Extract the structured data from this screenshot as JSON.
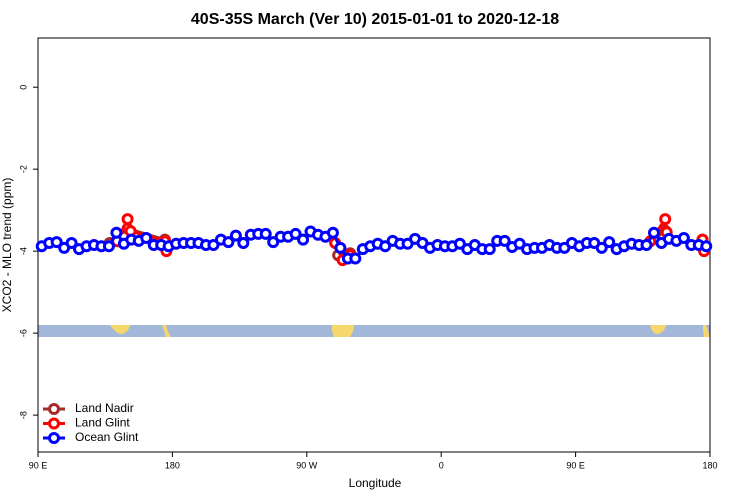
{
  "chart_data": {
    "type": "line",
    "title": "40S-35S March (Ver 10)   2015-01-01 to 2020-12-18",
    "x_label": "Longitude",
    "y_label": "XCO2 - MLO trend (ppm)",
    "xlim": [
      90,
      540
    ],
    "ylim": [
      -8.9,
      1.2
    ],
    "xticks": [
      {
        "value": 90,
        "label": "90 E"
      },
      180,
      {
        "value": 270,
        "label": "90 W"
      },
      {
        "value": 360,
        "label": "0"
      },
      {
        "value": 450,
        "label": "90 E"
      },
      {
        "value": 540,
        "label": "180"
      }
    ],
    "yticks": [
      0,
      -2,
      -4,
      -6,
      -8
    ],
    "legend": "bottomleft",
    "series": [
      {
        "name": "Land Nadir",
        "color": "#a52a2a",
        "x": [
          138,
          150,
          175,
          232,
          291,
          299,
          400,
          503,
          510,
          520,
          535
        ],
        "values": [
          -3.8,
          -3.45,
          -3.72,
          null,
          -4.1,
          -4.05,
          null,
          -3.7,
          -3.5,
          null,
          -3.72
        ]
      },
      {
        "name": "Land Glint",
        "color": "#ff0000",
        "x": [
          143,
          150,
          152,
          175,
          176,
          232,
          289,
          294,
          299,
          302,
          400,
          500,
          510,
          511,
          520,
          535,
          536
        ],
        "values": [
          -3.76,
          -3.22,
          -3.51,
          -3.76,
          -4.0,
          null,
          -3.8,
          -4.22,
          -4.1,
          -4.17,
          null,
          -3.76,
          -3.22,
          -3.54,
          null,
          -3.72,
          -4.0
        ]
      },
      {
        "name": "Ocean Glint",
        "color": "#0000ff",
        "x": [
          92.5,
          97.5,
          102.5,
          107.5,
          112.5,
          117.5,
          122.5,
          127.5,
          132.5,
          137.5,
          142.5,
          147.5,
          152.5,
          157.5,
          162.5,
          167.5,
          172.5,
          177.5,
          182.5,
          187.5,
          192.5,
          197.5,
          202.5,
          207.5,
          212.5,
          217.5,
          222.5,
          227.5,
          232.5,
          237.5,
          242.5,
          247.5,
          252.5,
          257.5,
          262.5,
          267.5,
          272.5,
          277.5,
          282.5,
          287.5,
          292.5,
          297.5,
          302.5,
          307.5,
          312.5,
          317.5,
          322.5,
          327.5,
          332.5,
          337.5,
          342.5,
          347.5,
          352.5,
          357.5,
          362.5,
          367.5,
          372.5,
          377.5,
          382.5,
          387.5,
          392.5,
          397.5,
          402.5,
          407.5,
          412.5,
          417.5,
          422.5,
          427.5,
          432.5,
          437.5,
          442.5,
          447.5,
          452.5,
          457.5,
          462.5,
          467.5,
          472.5,
          477.5,
          482.5,
          487.5,
          492.5,
          497.5,
          502.5,
          507.5,
          512.5,
          517.5,
          522.5,
          527.5,
          532.5,
          537.5
        ],
        "values": [
          -3.88,
          -3.8,
          -3.78,
          -3.92,
          -3.8,
          -3.95,
          -3.88,
          -3.85,
          -3.88,
          -3.88,
          -3.55,
          -3.82,
          -3.72,
          -3.75,
          -3.68,
          -3.85,
          -3.85,
          -3.88,
          -3.82,
          -3.8,
          -3.8,
          -3.8,
          -3.85,
          -3.85,
          -3.72,
          -3.78,
          -3.62,
          -3.8,
          -3.6,
          -3.58,
          -3.58,
          -3.78,
          -3.65,
          -3.65,
          -3.58,
          -3.72,
          -3.52,
          -3.6,
          -3.65,
          -3.55,
          -3.92,
          -4.18,
          -4.18,
          -3.95,
          -3.88,
          -3.82,
          -3.88,
          -3.75,
          -3.82,
          -3.82,
          -3.7,
          -3.8,
          -3.92,
          -3.85,
          -3.88,
          -3.88,
          -3.82,
          -3.95,
          -3.85,
          -3.95,
          -3.95,
          -3.75,
          -3.75,
          -3.9,
          -3.82,
          -3.95,
          -3.92,
          -3.92,
          -3.85,
          -3.92,
          -3.92,
          -3.8,
          -3.88,
          -3.8,
          -3.8,
          -3.92,
          -3.78,
          -3.95,
          -3.88,
          -3.82,
          -3.85,
          -3.85,
          -3.55,
          -3.8,
          -3.7,
          -3.75,
          -3.68,
          -3.85,
          -3.85,
          -3.88
        ]
      }
    ]
  }
}
